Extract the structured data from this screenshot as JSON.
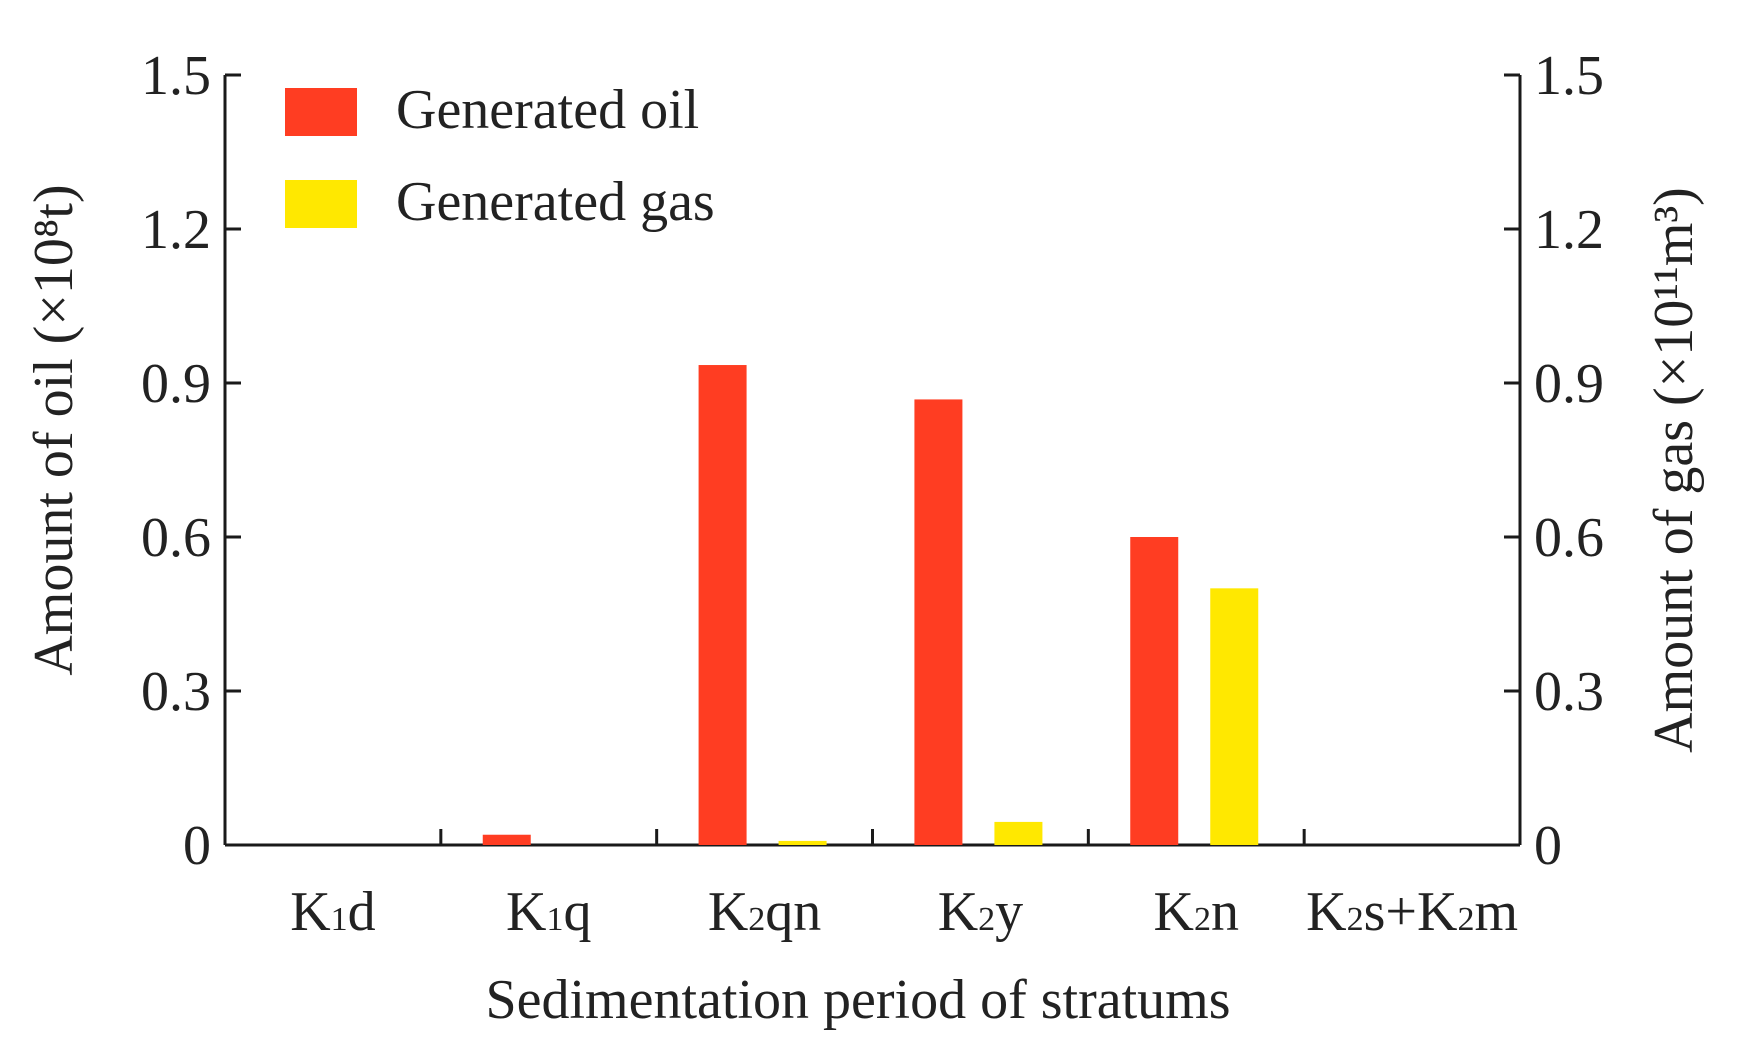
{
  "chart_data": {
    "type": "bar",
    "xlabel": "Sedimentation period of stratums",
    "ylabel_left": "Amount of oil (×10⁸t)",
    "ylabel_right": "Amount of gas (×10¹¹m³)",
    "ylim_left": [
      0,
      1.5
    ],
    "ylim_right": [
      0,
      1.5
    ],
    "yticks_left": [
      "0",
      "0.3",
      "0.6",
      "0.9",
      "1.2",
      "1.5"
    ],
    "yticks_right": [
      "0",
      "0.3",
      "0.6",
      "0.9",
      "1.2",
      "1.5"
    ],
    "grid": false,
    "legend_position": "top-left",
    "categories": [
      {
        "main": "K",
        "sub": "1",
        "rest": "d"
      },
      {
        "main": "K",
        "sub": "1",
        "rest": "q"
      },
      {
        "main": "K",
        "sub": "2",
        "rest": "qn"
      },
      {
        "main": "K",
        "sub": "2",
        "rest": "y"
      },
      {
        "main": "K",
        "sub": "2",
        "rest": "n"
      },
      {
        "main": "K",
        "sub": "2",
        "rest": "s+K",
        "sub2": "2",
        "rest2": "m"
      }
    ],
    "series": [
      {
        "name": "Generated oil",
        "axis": "left",
        "color": "#ff3d22",
        "values": [
          0,
          0.02,
          0.935,
          0.868,
          0.6,
          0
        ]
      },
      {
        "name": "Generated gas",
        "axis": "right",
        "color": "#ffe800",
        "values": [
          0,
          0,
          0.008,
          0.045,
          0.5,
          0
        ]
      }
    ]
  }
}
